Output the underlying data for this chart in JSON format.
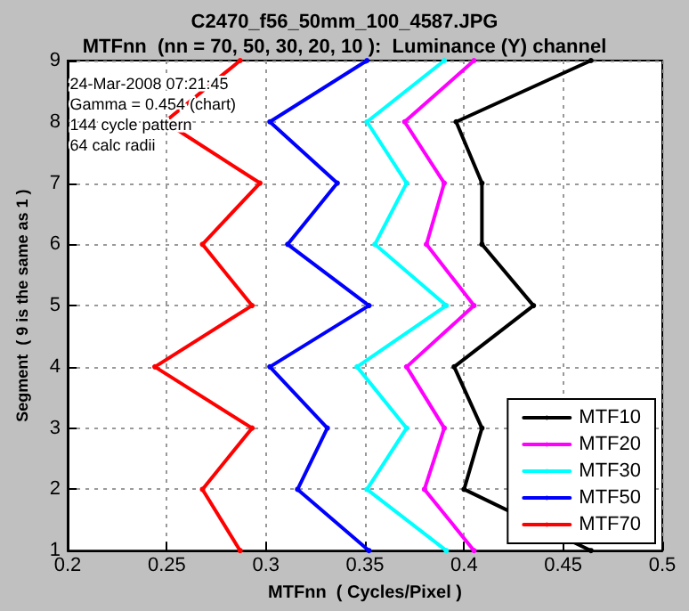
{
  "chart_data": {
    "type": "line",
    "title": "C2470_f56_50mm_100_4587.JPG",
    "subtitle": "MTFnn  (nn = 70, 50, 30, 20, 10 ):  Luminance (Y) channel",
    "xlabel": "MTFnn  ( Cycles/Pixel )",
    "ylabel": "Segment  ( 9 is the same as 1 )",
    "annotations": [
      "24-Mar-2008 07:21:45",
      "Gamma = 0.454 (chart)",
      "144 cycle pattern",
      "64 calc radii"
    ],
    "series": [
      {
        "name": "MTF10",
        "color": "#000000",
        "x": [
          0.464,
          0.4,
          0.409,
          0.395,
          0.435,
          0.409,
          0.409,
          0.396,
          0.464
        ],
        "values": [
          1,
          2,
          3,
          4,
          5,
          6,
          7,
          8,
          9
        ]
      },
      {
        "name": "MTF20",
        "color": "#ff00ff",
        "x": [
          0.405,
          0.38,
          0.39,
          0.371,
          0.405,
          0.381,
          0.39,
          0.37,
          0.405
        ],
        "values": [
          1,
          2,
          3,
          4,
          5,
          6,
          7,
          8,
          9
        ]
      },
      {
        "name": "MTF30",
        "color": "#00ffff",
        "x": [
          0.391,
          0.351,
          0.371,
          0.346,
          0.391,
          0.355,
          0.371,
          0.351,
          0.39
        ],
        "values": [
          1,
          2,
          3,
          4,
          5,
          6,
          7,
          8,
          9
        ]
      },
      {
        "name": "MTF50",
        "color": "#0000ff",
        "x": [
          0.352,
          0.316,
          0.331,
          0.302,
          0.352,
          0.311,
          0.336,
          0.302,
          0.351
        ],
        "values": [
          1,
          2,
          3,
          4,
          5,
          6,
          7,
          8,
          9
        ]
      },
      {
        "name": "MTF70",
        "color": "#ff0000",
        "x": [
          0.287,
          0.268,
          0.293,
          0.244,
          0.293,
          0.268,
          0.297,
          0.249,
          0.287
        ],
        "values": [
          1,
          2,
          3,
          4,
          5,
          6,
          7,
          8,
          9
        ]
      }
    ],
    "xlim": [
      0.2,
      0.5
    ],
    "xticks": [
      0.2,
      0.25,
      0.3,
      0.35,
      0.4,
      0.45,
      0.5
    ],
    "ylim": [
      1,
      9
    ],
    "yticks": [
      1,
      2,
      3,
      4,
      5,
      6,
      7,
      8,
      9
    ],
    "grid": true,
    "legend": "bottom right",
    "marker": "circle",
    "line_style": "solid"
  }
}
